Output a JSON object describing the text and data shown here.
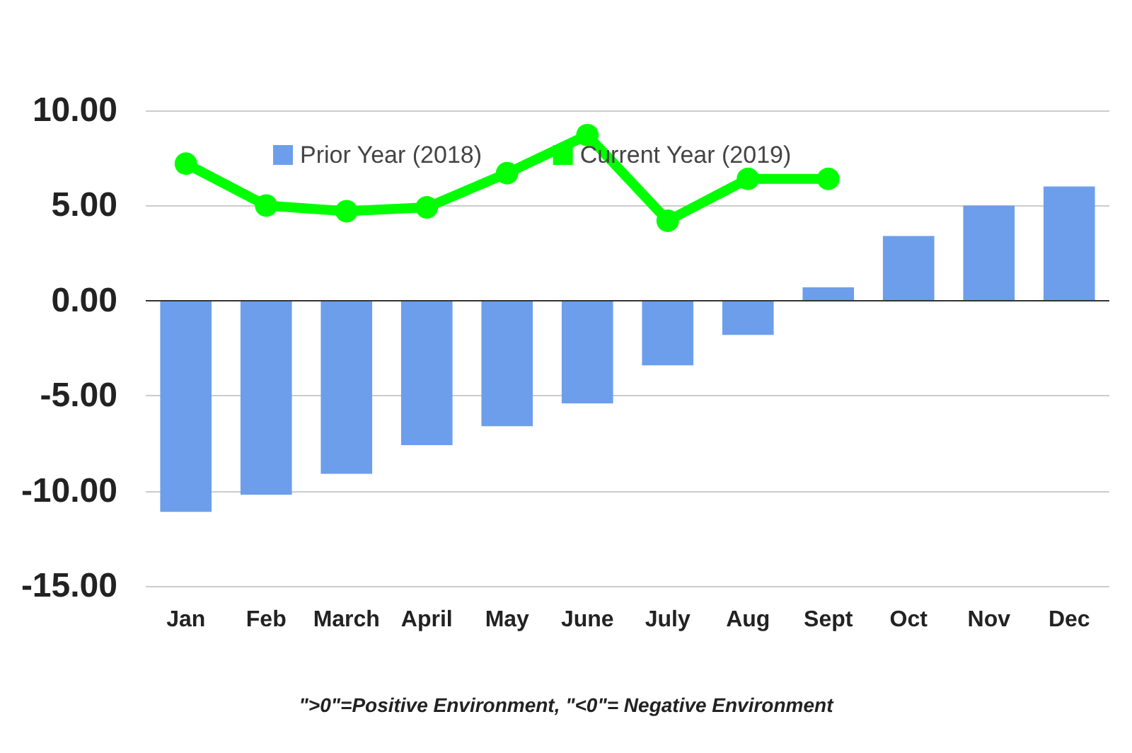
{
  "chart_data": {
    "type": "bar",
    "categories": [
      "Jan",
      "Feb",
      "March",
      "April",
      "May",
      "June",
      "July",
      "Aug",
      "Sept",
      "Oct",
      "Nov",
      "Dec"
    ],
    "series": [
      {
        "name": "Prior Year (2018)",
        "color": "#6d9eeb",
        "values": [
          -11.1,
          -10.2,
          -9.1,
          -7.6,
          -6.6,
          -5.4,
          -3.4,
          -1.8,
          0.7,
          3.4,
          5.0,
          6.0
        ]
      },
      {
        "name": "Current Year (2019)",
        "type": "line",
        "color": "#00ff00",
        "values": [
          7.2,
          5.0,
          4.7,
          4.9,
          6.7,
          8.7,
          4.2,
          6.4,
          6.4,
          null,
          null,
          null
        ]
      }
    ],
    "ylim": [
      -15,
      10
    ],
    "yticks": [
      {
        "value": -15,
        "label": "-15.00"
      },
      {
        "value": -10,
        "label": "-10.00"
      },
      {
        "value": -5,
        "label": "-5.00"
      },
      {
        "value": 0,
        "label": "0.00"
      },
      {
        "value": 5,
        "label": "5.00"
      },
      {
        "value": 10,
        "label": "10.00"
      }
    ],
    "grid": "y",
    "legend": "top left",
    "marker": "circle",
    "line_style": "solid",
    "annotations": [
      "\">0\"=Positive Environment, \"<0\"= Negative Environment"
    ]
  }
}
